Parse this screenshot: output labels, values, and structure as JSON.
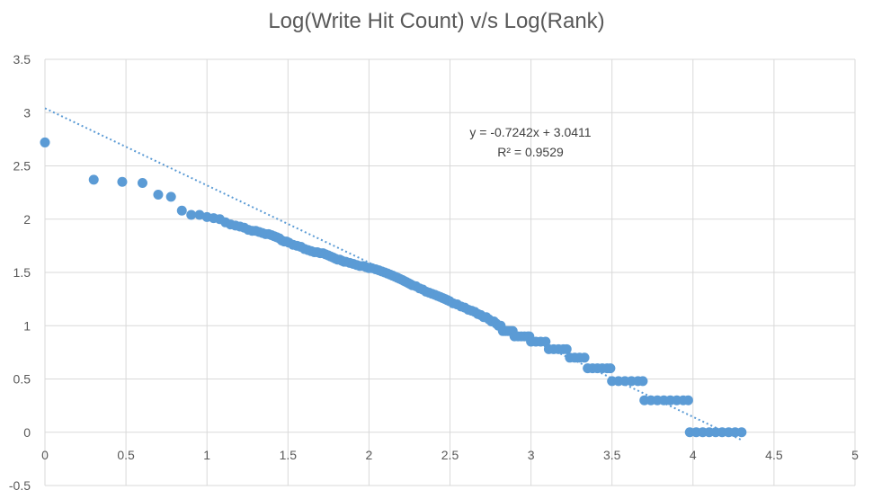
{
  "chart_data": {
    "type": "scatter",
    "title": "Log(Write Hit Count) v/s Log(Rank)",
    "xlabel": "",
    "ylabel": "",
    "xlim": [
      0,
      5
    ],
    "ylim": [
      -0.5,
      3.5
    ],
    "x_ticks": [
      "0",
      "0.5",
      "1",
      "1.5",
      "2",
      "2.5",
      "3",
      "3.5",
      "4",
      "4.5",
      "5"
    ],
    "y_ticks": [
      "3.5",
      "3",
      "2.5",
      "2",
      "1.5",
      "1",
      "0.5",
      "0",
      "-0.5"
    ],
    "grid": true,
    "point_color": "#5B9BD5",
    "trendline": {
      "type": "linear",
      "slope": -0.7242,
      "intercept": 3.0411,
      "r_squared": 0.9529,
      "x_range": [
        0,
        4.3
      ],
      "style": "dotted",
      "equation_label": "y = -0.7242x + 3.0411",
      "r2_label": "R² = 0.9529"
    },
    "points": [
      [
        0,
        2.72
      ],
      [
        0.301,
        2.37
      ],
      [
        0.477,
        2.35
      ],
      [
        0.602,
        2.34
      ],
      [
        0.699,
        2.23
      ],
      [
        0.778,
        2.21
      ],
      [
        0.845,
        2.08
      ],
      [
        0.903,
        2.04
      ],
      [
        0.954,
        2.04
      ],
      [
        1.0,
        2.02
      ],
      [
        1.041,
        2.01
      ],
      [
        1.079,
        2.0
      ],
      [
        1.114,
        1.97
      ],
      [
        1.146,
        1.95
      ],
      [
        1.176,
        1.94
      ],
      [
        1.204,
        1.93
      ],
      [
        1.23,
        1.92
      ],
      [
        1.255,
        1.9
      ],
      [
        1.279,
        1.89
      ],
      [
        1.301,
        1.89
      ],
      [
        1.322,
        1.88
      ],
      [
        1.342,
        1.87
      ],
      [
        1.362,
        1.86
      ],
      [
        1.38,
        1.86
      ],
      [
        1.398,
        1.85
      ],
      [
        1.415,
        1.84
      ],
      [
        1.431,
        1.83
      ],
      [
        1.447,
        1.82
      ],
      [
        1.462,
        1.8
      ],
      [
        1.477,
        1.79
      ],
      [
        1.491,
        1.79
      ],
      [
        1.505,
        1.78
      ],
      [
        1.531,
        1.76
      ],
      [
        1.556,
        1.75
      ],
      [
        1.58,
        1.74
      ],
      [
        1.602,
        1.72
      ],
      [
        1.623,
        1.71
      ],
      [
        1.643,
        1.7
      ],
      [
        1.663,
        1.69
      ],
      [
        1.681,
        1.69
      ],
      [
        1.699,
        1.68
      ],
      [
        1.716,
        1.68
      ],
      [
        1.732,
        1.67
      ],
      [
        1.748,
        1.66
      ],
      [
        1.763,
        1.65
      ],
      [
        1.778,
        1.64
      ],
      [
        1.792,
        1.63
      ],
      [
        1.806,
        1.62
      ],
      [
        1.819,
        1.62
      ],
      [
        1.833,
        1.61
      ],
      [
        1.845,
        1.6
      ],
      [
        1.857,
        1.6
      ],
      [
        1.881,
        1.59
      ],
      [
        1.903,
        1.58
      ],
      [
        1.924,
        1.57
      ],
      [
        1.944,
        1.56
      ],
      [
        1.964,
        1.56
      ],
      [
        1.982,
        1.55
      ],
      [
        2.0,
        1.54
      ],
      [
        2.017,
        1.54
      ],
      [
        2.041,
        1.53
      ],
      [
        2.061,
        1.52
      ],
      [
        2.079,
        1.51
      ],
      [
        2.097,
        1.5
      ],
      [
        2.114,
        1.49
      ],
      [
        2.13,
        1.48
      ],
      [
        2.146,
        1.47
      ],
      [
        2.161,
        1.46
      ],
      [
        2.176,
        1.45
      ],
      [
        2.19,
        1.44
      ],
      [
        2.204,
        1.43
      ],
      [
        2.217,
        1.42
      ],
      [
        2.23,
        1.41
      ],
      [
        2.243,
        1.4
      ],
      [
        2.255,
        1.39
      ],
      [
        2.267,
        1.38
      ],
      [
        2.29,
        1.37
      ],
      [
        2.312,
        1.35
      ],
      [
        2.332,
        1.34
      ],
      [
        2.352,
        1.32
      ],
      [
        2.371,
        1.31
      ],
      [
        2.389,
        1.3
      ],
      [
        2.407,
        1.29
      ],
      [
        2.423,
        1.28
      ],
      [
        2.439,
        1.27
      ],
      [
        2.455,
        1.26
      ],
      [
        2.47,
        1.25
      ],
      [
        2.484,
        1.24
      ],
      [
        2.498,
        1.23
      ],
      [
        2.519,
        1.21
      ],
      [
        2.544,
        1.2
      ],
      [
        2.568,
        1.18
      ],
      [
        2.591,
        1.17
      ],
      [
        2.613,
        1.15
      ],
      [
        2.634,
        1.14
      ],
      [
        2.653,
        1.13
      ],
      [
        2.672,
        1.11
      ],
      [
        2.69,
        1.1
      ],
      [
        2.708,
        1.08
      ],
      [
        2.724,
        1.08
      ],
      [
        2.74,
        1.06
      ],
      [
        2.756,
        1.04
      ],
      [
        2.771,
        1.04
      ],
      [
        2.785,
        1.02
      ],
      [
        2.799,
        1.0
      ],
      [
        2.813,
        1.0
      ],
      [
        2.826,
        0.95
      ],
      [
        2.839,
        0.95
      ],
      [
        2.851,
        0.95
      ],
      [
        2.863,
        0.95
      ],
      [
        2.875,
        0.95
      ],
      [
        2.887,
        0.95
      ],
      [
        2.898,
        0.9
      ],
      [
        2.92,
        0.9
      ],
      [
        2.94,
        0.9
      ],
      [
        2.96,
        0.9
      ],
      [
        2.98,
        0.9
      ],
      [
        2.99,
        0.9
      ],
      [
        3.0,
        0.85
      ],
      [
        3.03,
        0.85
      ],
      [
        3.06,
        0.85
      ],
      [
        3.09,
        0.85
      ],
      [
        3.11,
        0.78
      ],
      [
        3.14,
        0.78
      ],
      [
        3.17,
        0.78
      ],
      [
        3.2,
        0.78
      ],
      [
        3.22,
        0.78
      ],
      [
        3.24,
        0.7
      ],
      [
        3.27,
        0.7
      ],
      [
        3.3,
        0.7
      ],
      [
        3.33,
        0.7
      ],
      [
        3.35,
        0.6
      ],
      [
        3.38,
        0.6
      ],
      [
        3.41,
        0.6
      ],
      [
        3.44,
        0.6
      ],
      [
        3.47,
        0.6
      ],
      [
        3.49,
        0.6
      ],
      [
        3.5,
        0.48
      ],
      [
        3.54,
        0.48
      ],
      [
        3.58,
        0.48
      ],
      [
        3.62,
        0.48
      ],
      [
        3.66,
        0.48
      ],
      [
        3.69,
        0.48
      ],
      [
        3.7,
        0.3
      ],
      [
        3.74,
        0.3
      ],
      [
        3.78,
        0.3
      ],
      [
        3.82,
        0.3
      ],
      [
        3.86,
        0.3
      ],
      [
        3.9,
        0.3
      ],
      [
        3.94,
        0.3
      ],
      [
        3.97,
        0.3
      ],
      [
        3.98,
        0.0
      ],
      [
        4.02,
        0.0
      ],
      [
        4.06,
        0.0
      ],
      [
        4.1,
        0.0
      ],
      [
        4.14,
        0.0
      ],
      [
        4.18,
        0.0
      ],
      [
        4.22,
        0.0
      ],
      [
        4.26,
        0.0
      ],
      [
        4.3,
        0.0
      ]
    ]
  }
}
